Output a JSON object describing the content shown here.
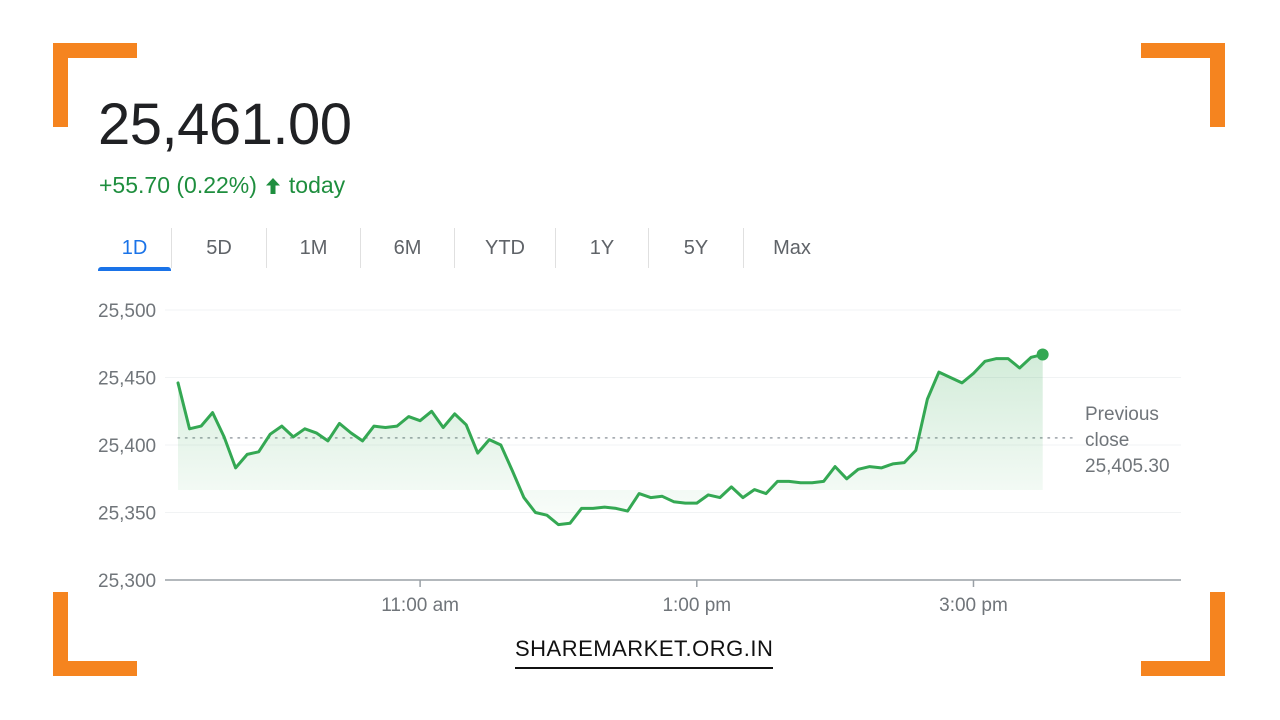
{
  "header": {
    "price": "25,461.00",
    "change": "+55.70 (0.22%)",
    "change_suffix": "today",
    "change_color": "#1e8e3e"
  },
  "tabs": [
    {
      "label": "1D",
      "active": true
    },
    {
      "label": "5D",
      "active": false
    },
    {
      "label": "1M",
      "active": false
    },
    {
      "label": "6M",
      "active": false
    },
    {
      "label": "YTD",
      "active": false
    },
    {
      "label": "1Y",
      "active": false
    },
    {
      "label": "5Y",
      "active": false
    },
    {
      "label": "Max",
      "active": false
    }
  ],
  "chart_data": {
    "type": "line",
    "ylim": [
      25300,
      25500
    ],
    "yticks": [
      "25,500",
      "25,450",
      "25,400",
      "25,350",
      "25,300"
    ],
    "ytick_values": [
      25500,
      25450,
      25400,
      25350,
      25300
    ],
    "xlim": [
      "09:15",
      "16:30"
    ],
    "xticks": [
      "11:00 am",
      "1:00 pm",
      "3:00 pm"
    ],
    "xtick_values": [
      "11:00",
      "13:00",
      "15:00"
    ],
    "line_color": "#34a853",
    "previous_close": 25405.3,
    "previous_close_label_lines": [
      "Previous",
      "close",
      "25,405.30"
    ],
    "series": [
      {
        "x": [
          "09:15",
          "09:20",
          "09:25",
          "09:30",
          "09:35",
          "09:40",
          "09:45",
          "09:50",
          "09:55",
          "10:00",
          "10:05",
          "10:10",
          "10:15",
          "10:20",
          "10:25",
          "10:30",
          "10:35",
          "10:40",
          "10:45",
          "10:50",
          "10:55",
          "11:00",
          "11:05",
          "11:10",
          "11:15",
          "11:20",
          "11:25",
          "11:30",
          "11:35",
          "11:40",
          "11:45",
          "11:50",
          "11:55",
          "12:00",
          "12:05",
          "12:10",
          "12:15",
          "12:20",
          "12:25",
          "12:30",
          "12:35",
          "12:40",
          "12:45",
          "12:50",
          "12:55",
          "13:00",
          "13:05",
          "13:10",
          "13:15",
          "13:20",
          "13:25",
          "13:30",
          "13:35",
          "13:40",
          "13:45",
          "13:50",
          "13:55",
          "14:00",
          "14:05",
          "14:10",
          "14:15",
          "14:20",
          "14:25",
          "14:30",
          "14:35",
          "14:40",
          "14:45",
          "14:50",
          "14:55",
          "15:00",
          "15:05",
          "15:10",
          "15:15",
          "15:20",
          "15:25",
          "15:30"
        ],
        "values": [
          25446,
          25412,
          25414,
          25424,
          25406,
          25383,
          25393,
          25395,
          25408,
          25414,
          25406,
          25412,
          25409,
          25403,
          25416,
          25409,
          25403,
          25414,
          25413,
          25414,
          25421,
          25418,
          25425,
          25413,
          25423,
          25415,
          25394,
          25404,
          25400,
          25381,
          25361,
          25350,
          25348,
          25341,
          25342,
          25353,
          25353,
          25354,
          25353,
          25351,
          25364,
          25361,
          25362,
          25358,
          25357,
          25357,
          25363,
          25361,
          25369,
          25361,
          25367,
          25364,
          25373,
          25373,
          25372,
          25372,
          25373,
          25384,
          25375,
          25382,
          25384,
          25383,
          25386,
          25387,
          25396,
          25434,
          25454,
          25450,
          25446,
          25453,
          25462,
          25464,
          25464,
          25457,
          25465,
          25467
        ]
      }
    ]
  },
  "watermark": "SHAREMARKET.ORG.IN"
}
